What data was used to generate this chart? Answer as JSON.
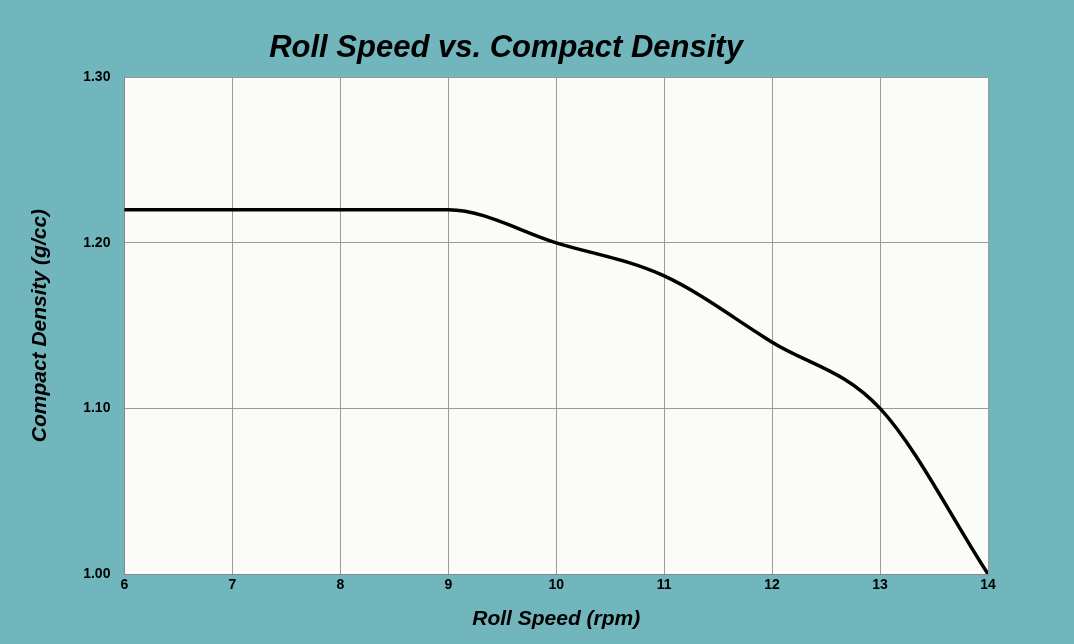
{
  "chart_data": {
    "type": "line",
    "title": "Roll Speed vs. Compact Density",
    "xlabel": "Roll Speed (rpm)",
    "ylabel": "Compact Density (g/cc)",
    "x": [
      6,
      7,
      8,
      9,
      10,
      11,
      12,
      13,
      14
    ],
    "series": [
      {
        "color": "#000000",
        "values": [
          1.22,
          1.22,
          1.22,
          1.22,
          1.2,
          1.18,
          1.14,
          1.1,
          1.0
        ]
      }
    ],
    "xlim": [
      6,
      14
    ],
    "xticks": [
      6,
      7,
      8,
      9,
      10,
      11,
      12,
      13,
      14
    ],
    "ylim": [
      1.0,
      1.3
    ],
    "yticks": [
      {
        "value": 1.0,
        "label": "1.00"
      },
      {
        "value": 1.1,
        "label": "1.10"
      },
      {
        "value": 1.2,
        "label": "1.20"
      },
      {
        "value": 1.3,
        "label": "1.30"
      }
    ],
    "grid": true,
    "legend": false,
    "marker": "none",
    "line_style": "solid"
  }
}
